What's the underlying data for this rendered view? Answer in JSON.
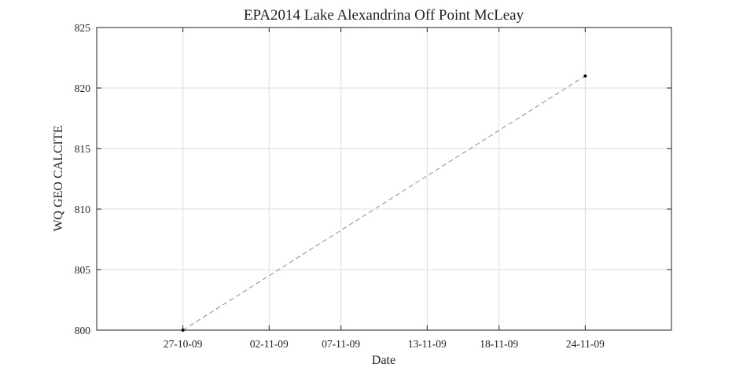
{
  "chart_data": {
    "type": "line",
    "title": "EPA2014 Lake Alexandrina Off Point McLeay",
    "xlabel": "Date",
    "ylabel": "WQ GEO CALCITE",
    "x_ticks": [
      "27-10-09",
      "02-11-09",
      "07-11-09",
      "13-11-09",
      "18-11-09",
      "24-11-09"
    ],
    "y_ticks": [
      800,
      805,
      810,
      815,
      820,
      825
    ],
    "ylim": [
      800,
      825
    ],
    "xlim": [
      "2009-10-21",
      "2009-11-30"
    ],
    "grid": true,
    "series": [
      {
        "x": [
          "2009-10-27",
          "2009-11-24"
        ],
        "y": [
          800,
          821
        ],
        "line_style": "dashed",
        "line_color": "#8c8c8c",
        "marker_color": "#000000"
      }
    ]
  }
}
